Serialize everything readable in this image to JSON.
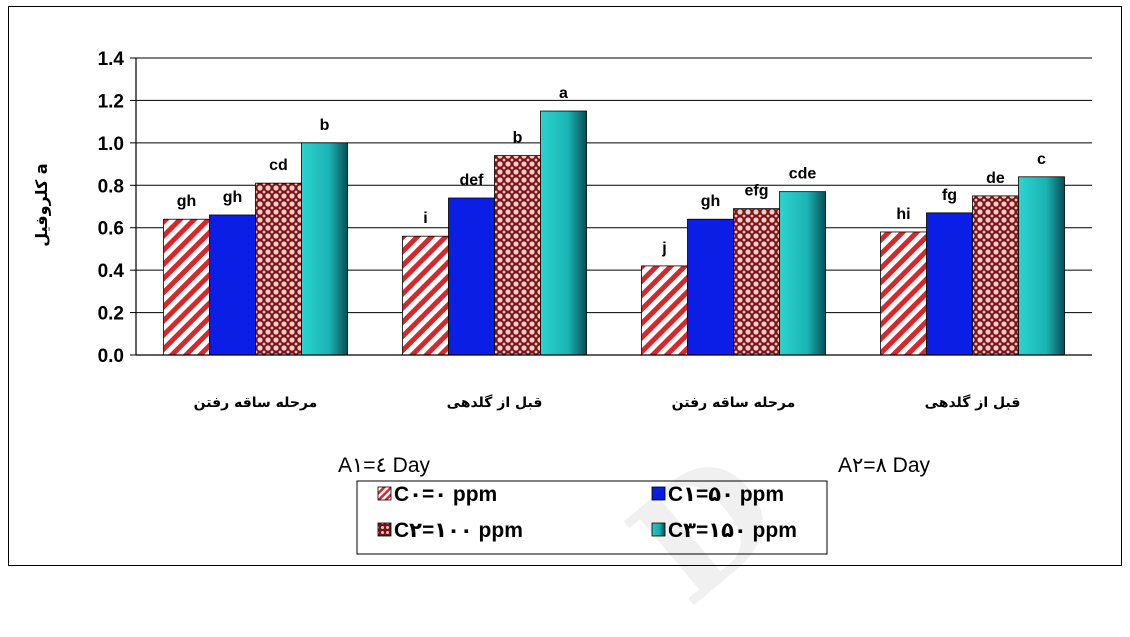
{
  "chart_data": {
    "type": "bar",
    "ylabel": "کلروفیل a",
    "ylim": [
      0,
      1.4
    ],
    "yticks": [
      "0.0",
      "0.2",
      "0.4",
      "0.6",
      "0.8",
      "1.0",
      "1.2",
      "1.4"
    ],
    "grid": true,
    "categories": [
      "مرحله ساقه رفتن",
      "قبل از گلدهی",
      "مرحله ساقه رفتن",
      "قبل از گلدهی"
    ],
    "groups": [
      {
        "label": "A۱=٤ Day",
        "category_indices": [
          0,
          1
        ]
      },
      {
        "label": "A۲=٨ Day",
        "category_indices": [
          2,
          3
        ]
      }
    ],
    "series": [
      {
        "name": "C۰=۰ ppm",
        "color": "#d9262a",
        "pattern": "diagonal-stripes",
        "values": [
          0.64,
          0.56,
          0.42,
          0.58
        ],
        "labels": [
          "gh",
          "i",
          "j",
          "hi"
        ]
      },
      {
        "name": "C۱=۵۰ ppm",
        "color": "#0a1ee6",
        "pattern": "solid",
        "values": [
          0.66,
          0.74,
          0.64,
          0.67
        ],
        "labels": [
          "gh",
          "def",
          "gh",
          "fg"
        ]
      },
      {
        "name": "C۲=۱۰۰ ppm",
        "color": "#8b1a1a",
        "pattern": "dots",
        "values": [
          0.81,
          0.94,
          0.69,
          0.75
        ],
        "labels": [
          "cd",
          "b",
          "efg",
          "de"
        ]
      },
      {
        "name": "C۳=۱۵۰ ppm",
        "color": "#20c4c4",
        "pattern": "gradient",
        "values": [
          1.0,
          1.15,
          0.77,
          0.84
        ],
        "labels": [
          "b",
          "a",
          "cde",
          "c"
        ]
      }
    ],
    "legend_position": "bottom-center"
  }
}
